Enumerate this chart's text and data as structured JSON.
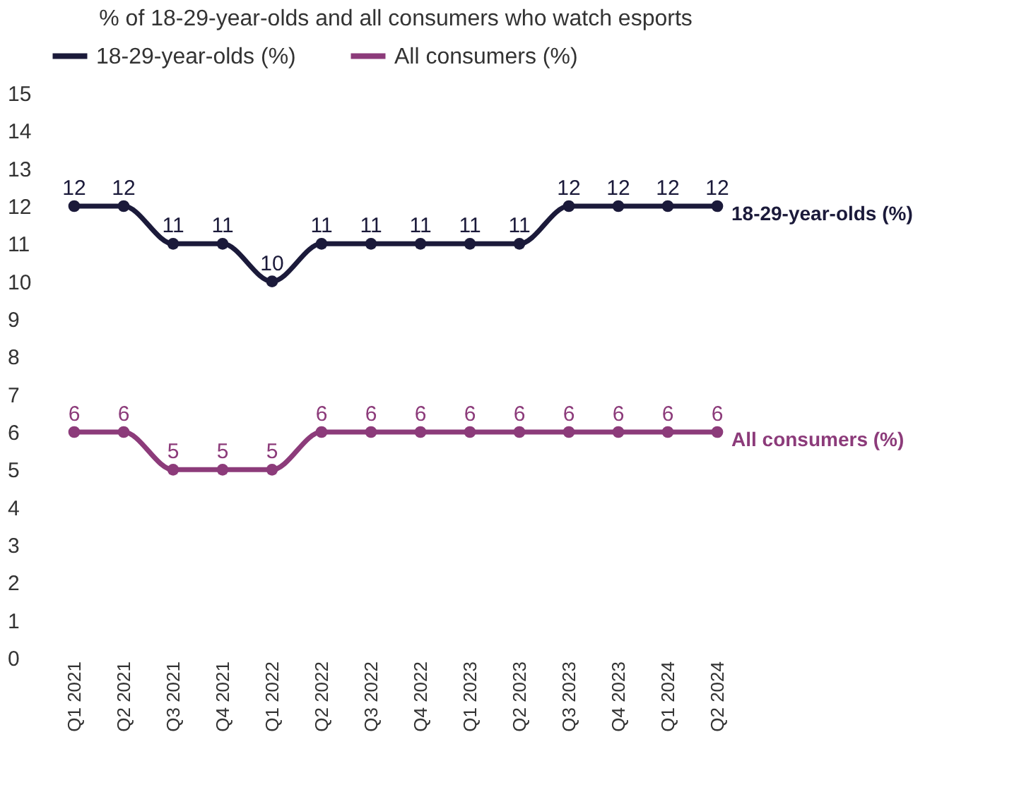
{
  "chart_data": {
    "type": "line",
    "title": "% of 18-29-year-olds and all consumers who watch esports",
    "categories": [
      "Q1 2021",
      "Q2 2021",
      "Q3 2021",
      "Q4 2021",
      "Q1 2022",
      "Q2 2022",
      "Q3 2022",
      "Q4 2022",
      "Q1 2023",
      "Q2 2023",
      "Q3 2023",
      "Q4 2023",
      "Q1 2024",
      "Q2 2024"
    ],
    "series": [
      {
        "name": "18-29-year-olds (%)",
        "color": "#1b1a3a",
        "values": [
          12,
          12,
          11,
          11,
          10,
          11,
          11,
          11,
          11,
          11,
          12,
          12,
          12,
          12
        ]
      },
      {
        "name": "All consumers (%)",
        "color": "#8c3b7a",
        "values": [
          6,
          6,
          5,
          5,
          5,
          6,
          6,
          6,
          6,
          6,
          6,
          6,
          6,
          6
        ]
      }
    ],
    "ylim": [
      0,
      15
    ],
    "yticks": [
      0,
      1,
      2,
      3,
      4,
      5,
      6,
      7,
      8,
      9,
      10,
      11,
      12,
      13,
      14,
      15
    ],
    "grid": false,
    "legend": "top",
    "marker": "circle",
    "line_style": "solid",
    "data_labels": true
  }
}
